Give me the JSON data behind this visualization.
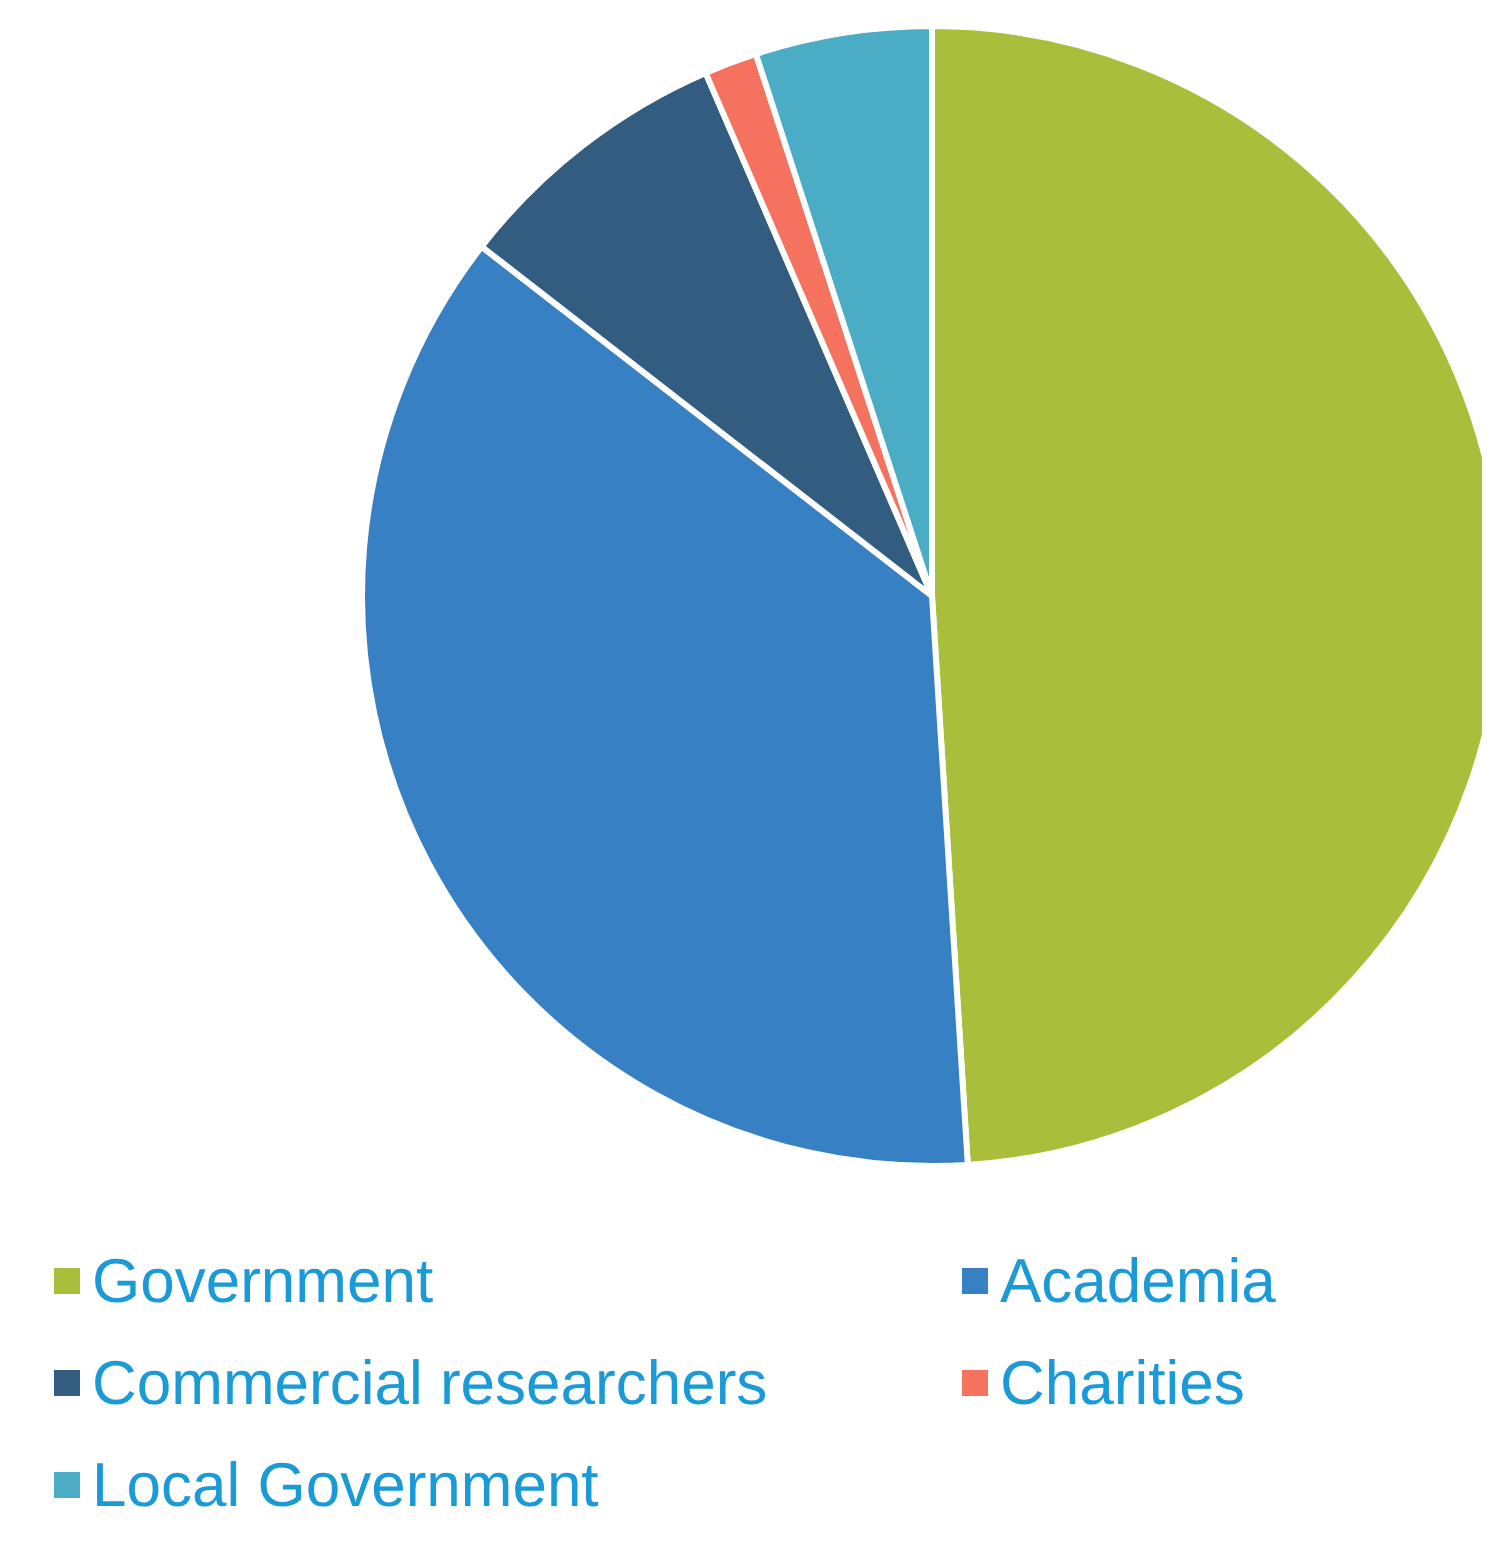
{
  "chart_data": {
    "type": "pie",
    "categories": [
      "Government",
      "Academia",
      "Commercial researchers",
      "Charities",
      "Local Government"
    ],
    "values": [
      49,
      36.5,
      8,
      1.5,
      5
    ],
    "colors": [
      "#a9bf3c",
      "#3780c4",
      "#325d80",
      "#f4725e",
      "#4aacc5"
    ],
    "legend": "bottom"
  }
}
